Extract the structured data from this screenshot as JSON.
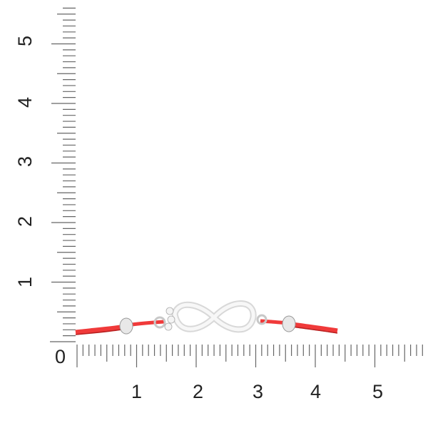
{
  "ruler": {
    "horizontal_labels": [
      "0",
      "1",
      "2",
      "3",
      "4",
      "5"
    ],
    "vertical_labels": [
      "1",
      "2",
      "3",
      "4",
      "5"
    ]
  },
  "colors": {
    "cord": "#f03a3a",
    "silver": "#e6e6e6",
    "ruler": "#666666"
  }
}
